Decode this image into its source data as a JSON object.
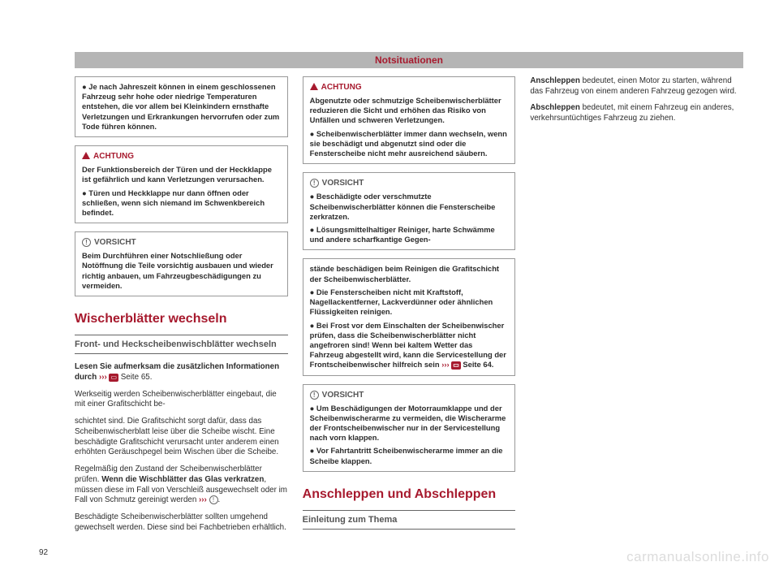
{
  "header": {
    "title": "Notsituationen"
  },
  "labels": {
    "achtung": "ACHTUNG",
    "vorsicht": "VORSICHT"
  },
  "col1": {
    "box1": {
      "text": "● Je nach Jahreszeit können in einem geschlossenen Fahrzeug sehr hohe oder niedrige Temperaturen entstehen, die vor allem bei Kleinkindern ernsthafte Verletzungen und Erkrankungen hervorrufen oder zum Tode führen können."
    },
    "box2": {
      "text": "Der Funktionsbereich der Türen und der Heckklappe ist gefährlich und kann Verletzungen verursachen.",
      "bullet": "● Türen und Heckklappe nur dann öffnen oder schließen, wenn sich niemand im Schwenkbereich befindet."
    },
    "box3": {
      "text": "Beim Durchführen einer Notschließung oder Notöffnung die Teile vorsichtig ausbauen und wieder richtig anbauen, um Fahrzeugbeschädigungen zu vermeiden."
    },
    "section_title": "Wischerblätter wechseln",
    "subsection_title": "Front- und Heckscheibenwischblätter wechseln",
    "p1": {
      "a": "Lesen Sie aufmerksam die zusätzlichen Informationen durch ",
      "ref": "Seite 65",
      "b": " Seite 65."
    },
    "p2": "Werkseitig werden Scheibenwischerblätter eingebaut, die mit einer Grafitschicht be-"
  },
  "col2": {
    "p1": "schichtet sind. Die Grafitschicht sorgt dafür, dass das Scheibenwischerblatt leise über die Scheibe wischt. Eine beschädigte Grafitschicht verursacht unter anderem einen erhöhten Geräuschpegel beim Wischen über die Scheibe.",
    "p2": {
      "a": "Regelmäßig den Zustand der Scheibenwischerblätter prüfen. ",
      "b": "Wenn die Wischblätter das Glas verkratzen",
      "c": ", müssen diese im Fall von Verschleiß ausgewechselt oder im Fall von Schmutz gereinigt werden "
    },
    "p3": "Beschädigte Scheibenwischerblätter sollten umgehend gewechselt werden. Diese sind bei Fachbetrieben erhältlich.",
    "box1": {
      "text": "Abgenutzte oder schmutzige Scheibenwischerblätter reduzieren die Sicht und erhöhen das Risiko von Unfällen und schweren Verletzungen.",
      "bullet": "● Scheibenwischerblätter immer dann wechseln, wenn sie beschädigt und abgenutzt sind oder die Fensterscheibe nicht mehr ausreichend säubern."
    },
    "box2": {
      "bullet1": "● Beschädigte oder verschmutzte Scheibenwischerblätter können die Fensterscheibe zerkratzen.",
      "bullet2": "● Lösungsmittelhaltiger Reiniger, harte Schwämme und andere scharfkantige Gegen-"
    }
  },
  "col3": {
    "box1": {
      "p1": "stände beschädigen beim Reinigen die Grafitschicht der Scheibenwischerblätter.",
      "b1": "● Die Fensterscheiben nicht mit Kraftstoff, Nagellackentferner, Lackverdünner oder ähnlichen Flüssigkeiten reinigen.",
      "b2a": "● Bei Frost vor dem Einschalten der Scheibenwischer prüfen, dass die Scheibenwischerblätter nicht angefroren sind! Wenn bei kaltem Wetter das Fahrzeug abgestellt wird, kann die Servicestellung der Frontscheibenwischer hilfreich sein ",
      "b2b": " Seite 64."
    },
    "box2": {
      "b1": "● Um Beschädigungen der Motorraumklappe und der Scheibenwischerarme zu vermeiden, die Wischerarme der Frontscheibenwischer nur in der Servicestellung nach vorn klappen.",
      "b2": "● Vor Fahrtantritt Scheibenwischerarme immer an die Scheibe klappen."
    },
    "section_title": "Anschleppen und Abschleppen",
    "subsection_title": "Einleitung zum Thema",
    "p1": {
      "a": "Anschleppen",
      "b": " bedeutet, einen Motor zu starten, während das Fahrzeug von einem anderen Fahrzeug gezogen wird."
    },
    "p2": {
      "a": "Abschleppen",
      "b": " bedeutet, mit einem Fahrzeug ein anderes, verkehrsuntüchtiges Fahrzeug zu ziehen."
    }
  },
  "footer": {
    "page": "92",
    "watermark": "carmanualsonline.info"
  }
}
